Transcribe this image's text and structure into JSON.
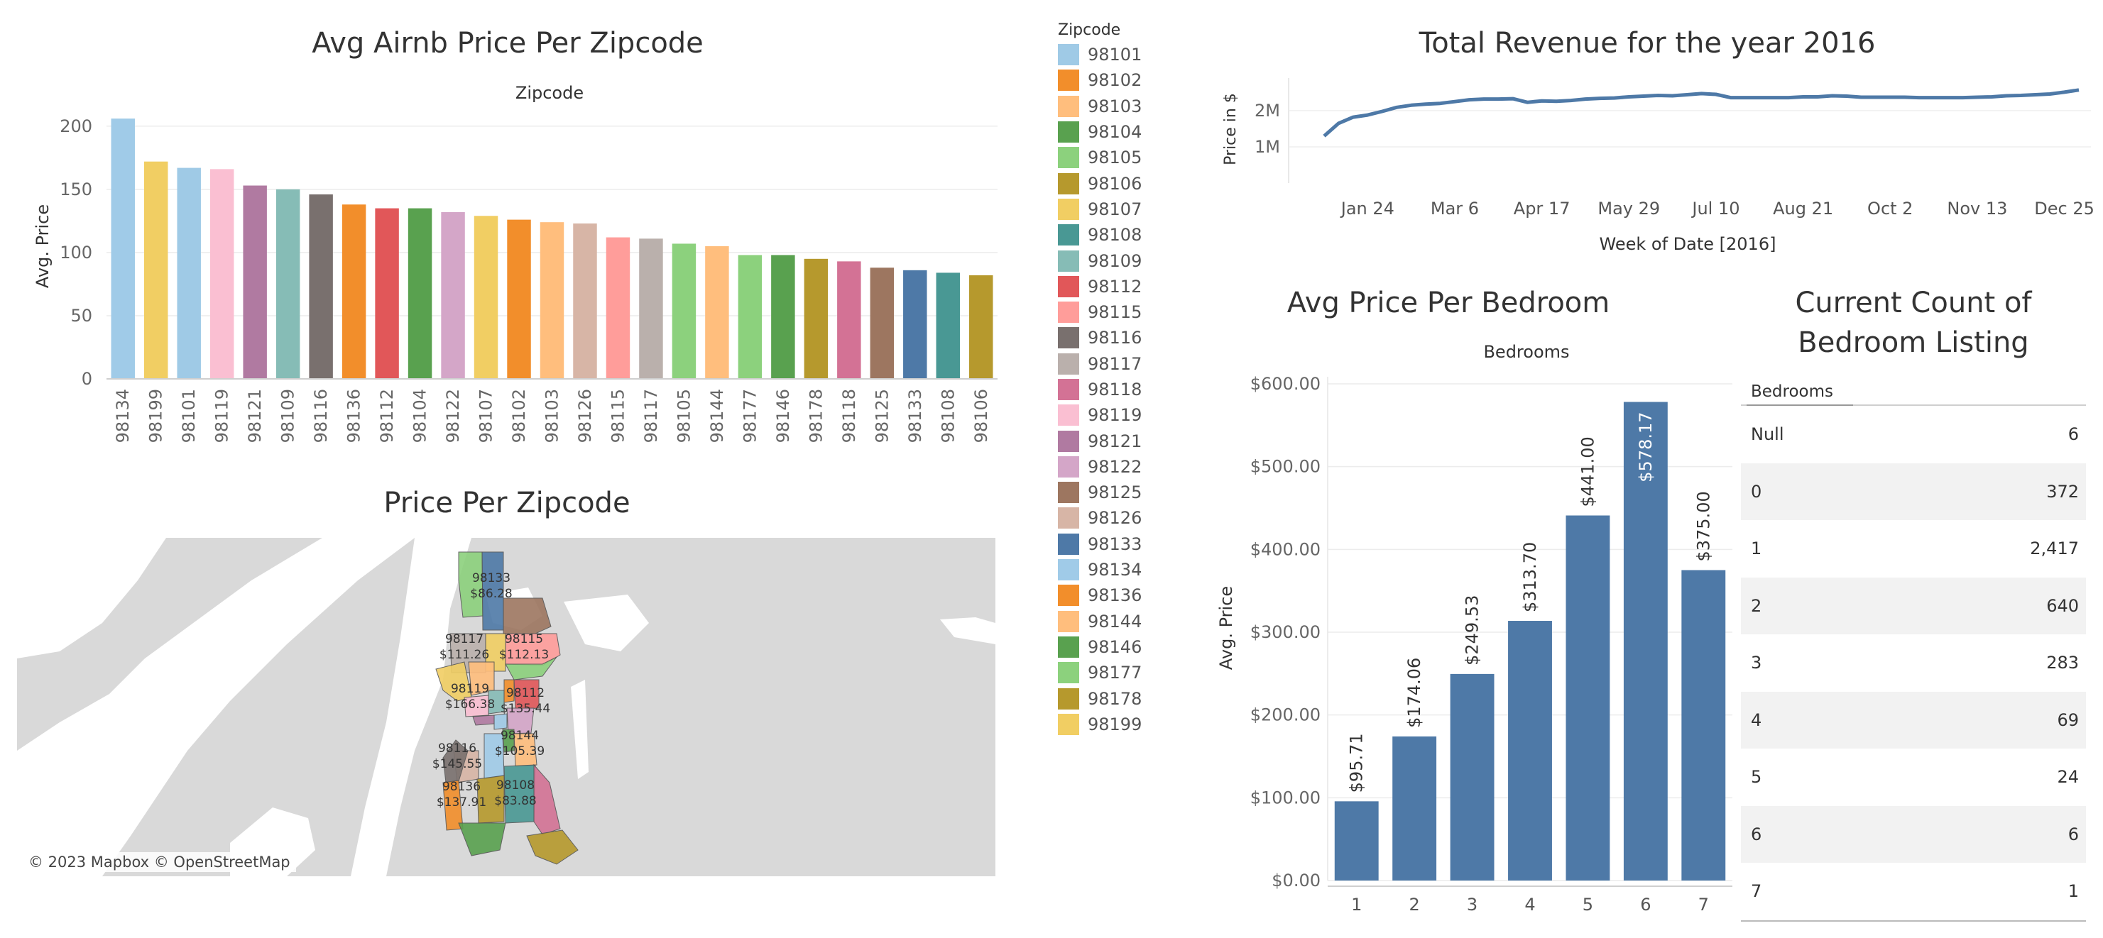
{
  "titles": {
    "zip_chart": "Avg Airnb Price Per Zipcode",
    "map": "Price Per Zipcode",
    "revenue": "Total Revenue for the year 2016",
    "bedroom": "Avg Price Per Bedroom",
    "count_line1": "Current Count of",
    "count_line2": "Bedroom Listing"
  },
  "legend": {
    "title": "Zipcode",
    "items": [
      {
        "label": "98101",
        "color": "#9fcae6"
      },
      {
        "label": "98102",
        "color": "#f28e2b"
      },
      {
        "label": "98103",
        "color": "#ffbe7d"
      },
      {
        "label": "98104",
        "color": "#59a14f"
      },
      {
        "label": "98105",
        "color": "#8cd17d"
      },
      {
        "label": "98106",
        "color": "#b6992d"
      },
      {
        "label": "98107",
        "color": "#f1ce63"
      },
      {
        "label": "98108",
        "color": "#499894"
      },
      {
        "label": "98109",
        "color": "#86bcb6"
      },
      {
        "label": "98112",
        "color": "#e15759"
      },
      {
        "label": "98115",
        "color": "#ff9d9a"
      },
      {
        "label": "98116",
        "color": "#79706e"
      },
      {
        "label": "98117",
        "color": "#bab0ac"
      },
      {
        "label": "98118",
        "color": "#d37295"
      },
      {
        "label": "98119",
        "color": "#fabfd2"
      },
      {
        "label": "98121",
        "color": "#b07aa1"
      },
      {
        "label": "98122",
        "color": "#d4a6c8"
      },
      {
        "label": "98125",
        "color": "#9d7660"
      },
      {
        "label": "98126",
        "color": "#d7b5a6"
      },
      {
        "label": "98133",
        "color": "#4e79a7"
      },
      {
        "label": "98134",
        "color": "#a0cbe8"
      },
      {
        "label": "98136",
        "color": "#f28e2b"
      },
      {
        "label": "98144",
        "color": "#ffbe7d"
      },
      {
        "label": "98146",
        "color": "#59a14f"
      },
      {
        "label": "98177",
        "color": "#8cd17d"
      },
      {
        "label": "98178",
        "color": "#b6992d"
      },
      {
        "label": "98199",
        "color": "#f1ce63"
      }
    ]
  },
  "map": {
    "attribution": "© 2023 Mapbox © OpenStreetMap",
    "labels": [
      {
        "zip": "98133",
        "price": "$86.28"
      },
      {
        "zip": "98117",
        "price": "$111.26"
      },
      {
        "zip": "98115",
        "price": "$112.13"
      },
      {
        "zip": "98119",
        "price": "$166.38"
      },
      {
        "zip": "98112",
        "price": "$135.44"
      },
      {
        "zip": "98144",
        "price": "$105.39"
      },
      {
        "zip": "98116",
        "price": "$145.55"
      },
      {
        "zip": "98136",
        "price": "$137.91"
      },
      {
        "zip": "98108",
        "price": "$83.88"
      }
    ]
  },
  "chart_data": [
    {
      "type": "bar",
      "title": "Avg Airnb Price Per Zipcode",
      "header": "Zipcode",
      "ylabel": "Avg. Price",
      "ylim": [
        0,
        210
      ],
      "yticks": [
        0,
        50,
        100,
        150,
        200
      ],
      "categories": [
        "98134",
        "98199",
        "98101",
        "98119",
        "98121",
        "98109",
        "98116",
        "98136",
        "98112",
        "98104",
        "98122",
        "98107",
        "98102",
        "98103",
        "98126",
        "98115",
        "98117",
        "98105",
        "98144",
        "98177",
        "98146",
        "98178",
        "98118",
        "98125",
        "98133",
        "98108",
        "98106"
      ],
      "values": [
        206,
        172,
        167,
        166,
        153,
        150,
        146,
        138,
        135,
        135,
        132,
        129,
        126,
        124,
        123,
        112,
        111,
        107,
        105,
        98,
        98,
        95,
        93,
        88,
        86,
        84,
        82
      ],
      "colors": [
        "#a0cbe8",
        "#f1ce63",
        "#9fcae6",
        "#fabfd2",
        "#b07aa1",
        "#86bcb6",
        "#79706e",
        "#f28e2b",
        "#e15759",
        "#59a14f",
        "#d4a6c8",
        "#f1ce63",
        "#f28e2b",
        "#ffbe7d",
        "#d7b5a6",
        "#ff9d9a",
        "#bab0ac",
        "#8cd17d",
        "#ffbe7d",
        "#8cd17d",
        "#59a14f",
        "#b6992d",
        "#d37295",
        "#9d7660",
        "#4e79a7",
        "#499894",
        "#b6992d"
      ]
    },
    {
      "type": "line",
      "title": "Total Revenue for the year 2016",
      "ylabel": "Price in $",
      "xlabel": "Week of Date [2016]",
      "xticks": [
        "Jan 24",
        "Mar 6",
        "Apr 17",
        "May 29",
        "Jul 10",
        "Aug 21",
        "Oct 2",
        "Nov 13",
        "Dec 25"
      ],
      "ytick_labels": [
        "1M",
        "2M"
      ],
      "ylim": [
        0,
        2900000
      ],
      "color": "#4e79a7",
      "x": [
        "Jan 3",
        "Jan 10",
        "Jan 17",
        "Jan 24",
        "Jan 31",
        "Feb 7",
        "Feb 14",
        "Feb 21",
        "Feb 28",
        "Mar 6",
        "Mar 13",
        "Mar 20",
        "Mar 27",
        "Apr 3",
        "Apr 10",
        "Apr 17",
        "Apr 24",
        "May 1",
        "May 8",
        "May 15",
        "May 22",
        "May 29",
        "Jun 5",
        "Jun 12",
        "Jun 19",
        "Jun 26",
        "Jul 3",
        "Jul 10",
        "Jul 17",
        "Jul 24",
        "Jul 31",
        "Aug 7",
        "Aug 14",
        "Aug 21",
        "Aug 28",
        "Sep 4",
        "Sep 11",
        "Sep 18",
        "Sep 25",
        "Oct 2",
        "Oct 9",
        "Oct 16",
        "Oct 23",
        "Oct 30",
        "Nov 6",
        "Nov 13",
        "Nov 20",
        "Nov 27",
        "Dec 4",
        "Dec 11",
        "Dec 18",
        "Dec 25",
        "Jan 1"
      ],
      "values": [
        1300000,
        1650000,
        1820000,
        1880000,
        1980000,
        2090000,
        2150000,
        2180000,
        2200000,
        2250000,
        2300000,
        2320000,
        2320000,
        2330000,
        2230000,
        2270000,
        2260000,
        2280000,
        2320000,
        2340000,
        2350000,
        2380000,
        2400000,
        2420000,
        2410000,
        2440000,
        2470000,
        2450000,
        2360000,
        2360000,
        2360000,
        2360000,
        2360000,
        2380000,
        2380000,
        2410000,
        2400000,
        2370000,
        2370000,
        2370000,
        2370000,
        2360000,
        2360000,
        2360000,
        2360000,
        2370000,
        2380000,
        2410000,
        2420000,
        2440000,
        2460000,
        2510000,
        2570000
      ]
    },
    {
      "type": "bar",
      "title": "Avg Price Per Bedroom",
      "header": "Bedrooms",
      "ylabel": "Avg. Price",
      "ylim": [
        0,
        600
      ],
      "ytick_labels": [
        "$0.00",
        "$100.00",
        "$200.00",
        "$300.00",
        "$400.00",
        "$500.00",
        "$600.00"
      ],
      "categories": [
        "1",
        "2",
        "3",
        "4",
        "5",
        "6",
        "7"
      ],
      "values": [
        95.71,
        174.06,
        249.53,
        313.7,
        441.0,
        578.17,
        375.0
      ],
      "value_labels": [
        "$95.71",
        "$174.06",
        "$249.53",
        "$313.70",
        "$441.00",
        "$578.17",
        "$375.00"
      ],
      "color": "#4e79a7"
    },
    {
      "type": "table",
      "title": "Current Count of Bedroom Listing",
      "column_header": "Bedrooms",
      "rows": [
        {
          "label": "Null",
          "value": "6"
        },
        {
          "label": "0",
          "value": "372"
        },
        {
          "label": "1",
          "value": "2,417"
        },
        {
          "label": "2",
          "value": "640"
        },
        {
          "label": "3",
          "value": "283"
        },
        {
          "label": "4",
          "value": "69"
        },
        {
          "label": "5",
          "value": "24"
        },
        {
          "label": "6",
          "value": "6"
        },
        {
          "label": "7",
          "value": "1"
        }
      ]
    }
  ]
}
